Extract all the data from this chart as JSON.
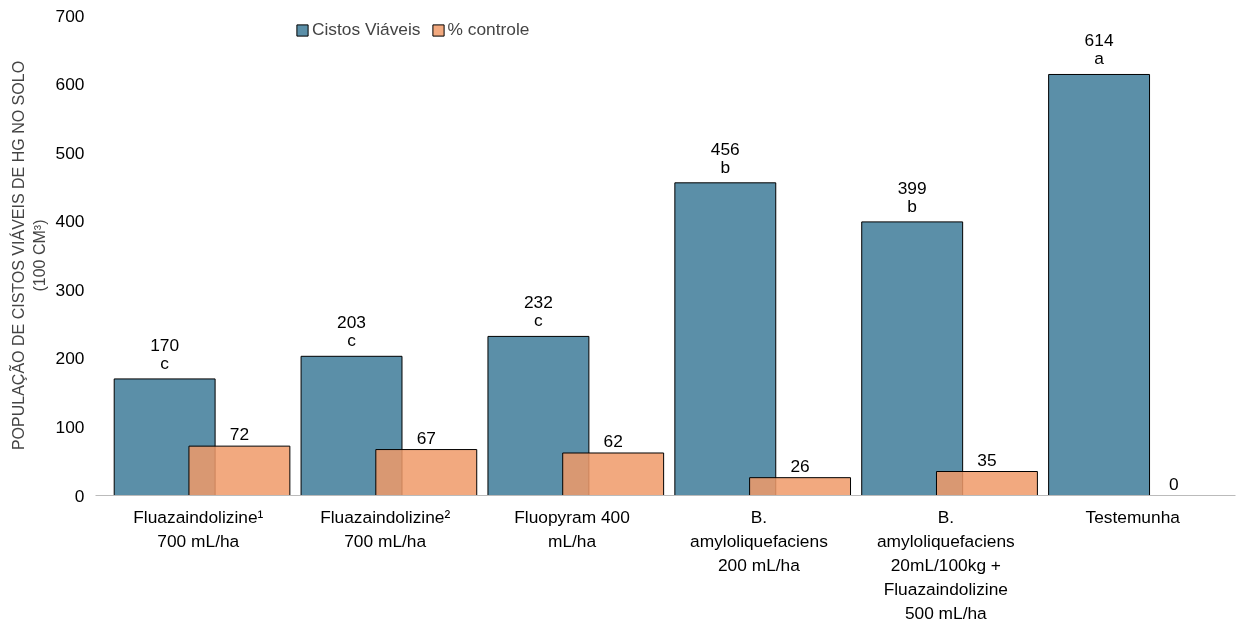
{
  "chart_data": {
    "type": "bar",
    "ylabel": "POPULAÇÃO DE CISTOS VIÁVEIS DE HG NO SOLO\n(100 CM³)",
    "categories": [
      "Fluazaindolizine¹\n700 mL/ha",
      "Fluazaindolizine²\n700 mL/ha",
      "Fluopyram 400\nmL/ha",
      "B.\namyloliquefaciens\n200 mL/ha",
      "B.\namyloliquefaciens\n20mL/100kg +\nFluazaindolizine\n500 mL/ha",
      "Testemunha"
    ],
    "series": [
      {
        "name": "Cistos Viáveis",
        "color": "#5b8fa8",
        "values": [
          170,
          203,
          232,
          456,
          399,
          614
        ],
        "value_labels": [
          "170\nc",
          "203\nc",
          "232\nc",
          "456\nb",
          "399\nb",
          "614\na"
        ]
      },
      {
        "name": "% controle",
        "color": "#f09a68",
        "values": [
          72,
          67,
          62,
          26,
          35,
          0
        ],
        "value_labels": [
          "72",
          "67",
          "62",
          "26",
          "35",
          "0"
        ]
      }
    ],
    "ylim": [
      0,
      700
    ],
    "yticks": [
      0,
      100,
      200,
      300,
      400,
      500,
      600,
      700
    ],
    "grid": false,
    "legend": "top left"
  }
}
